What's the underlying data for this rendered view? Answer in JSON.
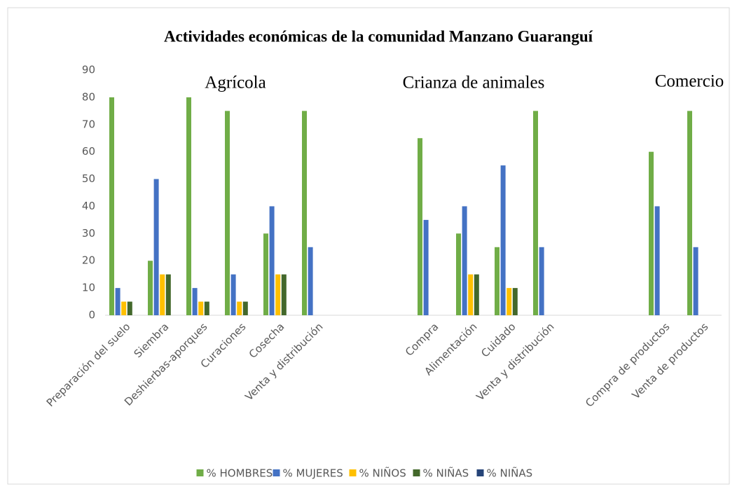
{
  "chart_data": {
    "type": "bar",
    "title": "Actividades económicas de la comunidad Manzano Guaranguí",
    "annotations": [
      "Agrícola",
      "Crianza de animales",
      "Comercio"
    ],
    "categories": [
      "Preparación del suelo",
      "Siembra",
      "Deshierbas-aporques",
      "Curaciones",
      "Cosecha",
      "Venta y distribución",
      null,
      null,
      "Compra",
      "Alimentación",
      "Cuidado",
      "Venta y distribución",
      null,
      null,
      "Compra de productos",
      "Venta de productos"
    ],
    "series": [
      {
        "name": "% HOMBRES",
        "color": "#70ad47",
        "values": [
          80,
          20,
          80,
          75,
          30,
          75,
          null,
          null,
          65,
          30,
          25,
          75,
          null,
          null,
          60,
          75
        ]
      },
      {
        "name": "% MUJERES",
        "color": "#4472c4",
        "values": [
          10,
          50,
          10,
          15,
          40,
          25,
          null,
          null,
          35,
          40,
          55,
          25,
          null,
          null,
          40,
          25
        ]
      },
      {
        "name": "% NIÑOS",
        "color": "#ffc000",
        "values": [
          5,
          15,
          5,
          5,
          15,
          null,
          null,
          null,
          null,
          15,
          10,
          null,
          null,
          null,
          null,
          null
        ]
      },
      {
        "name": "% NIÑAS",
        "color": "#43682b",
        "values": [
          5,
          15,
          5,
          5,
          15,
          null,
          null,
          null,
          null,
          15,
          10,
          null,
          null,
          null,
          null,
          null
        ]
      },
      {
        "name": "% NIÑAS",
        "color": "#264478",
        "values": [
          null,
          null,
          null,
          null,
          null,
          null,
          null,
          null,
          null,
          null,
          null,
          null,
          null,
          null,
          null,
          null
        ]
      }
    ],
    "ylim": [
      0,
      90
    ],
    "yticks": [
      0,
      10,
      20,
      30,
      40,
      50,
      60,
      70,
      80,
      90
    ],
    "grid": false,
    "legend": "bottom"
  }
}
